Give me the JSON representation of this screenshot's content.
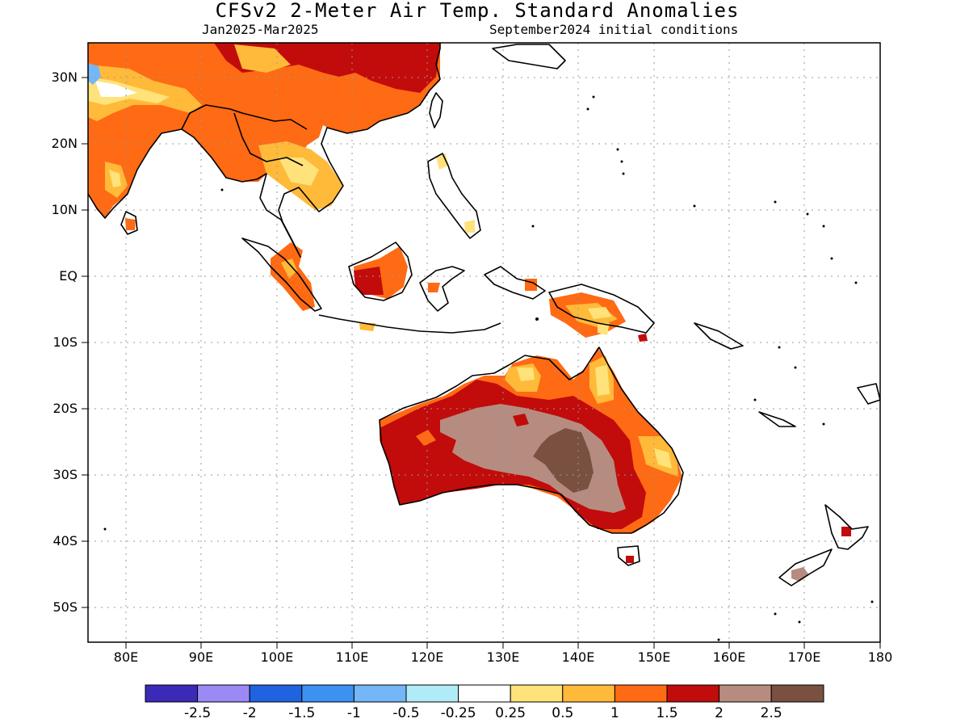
{
  "header": {
    "title": "CFSv2 2-Meter Air Temp. Standard Anomalies",
    "period": "Jan2025-Mar2025",
    "initial_conditions": "September2024 initial conditions"
  },
  "map": {
    "lat_ticks": [
      "30N",
      "20N",
      "10N",
      "EQ",
      "10S",
      "20S",
      "30S",
      "40S",
      "50S"
    ],
    "lon_ticks": [
      "80E",
      "90E",
      "100E",
      "110E",
      "120E",
      "130E",
      "140E",
      "150E",
      "160E",
      "170E",
      "180"
    ],
    "domain": {
      "lon_range": [
        75,
        180
      ],
      "lat_range": [
        -55,
        35
      ]
    },
    "grid": true
  },
  "colorbar": {
    "colors": [
      "#3b2ab8",
      "#9b8af6",
      "#1f63e0",
      "#3d91f0",
      "#74b6f7",
      "#b0ecf7",
      "#ffffff",
      "#ffe27a",
      "#ffba3a",
      "#ff6a14",
      "#c20b0b",
      "#b78c80",
      "#7a5040"
    ],
    "labels": [
      "-2.5",
      "-2",
      "-1.5",
      "-1",
      "-0.5",
      "-0.25",
      "0.25",
      "0.5",
      "1",
      "1.5",
      "2",
      "2.5"
    ]
  }
}
